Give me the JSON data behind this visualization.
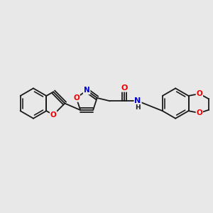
{
  "background_color": "#e8e8e8",
  "bond_color": "#1a1a1a",
  "bond_width": 1.3,
  "atom_colors": {
    "O": "#ee0000",
    "N": "#0000cc",
    "C": "#1a1a1a"
  },
  "font_size": 7.5,
  "figsize": [
    3.0,
    3.0
  ],
  "dpi": 100
}
